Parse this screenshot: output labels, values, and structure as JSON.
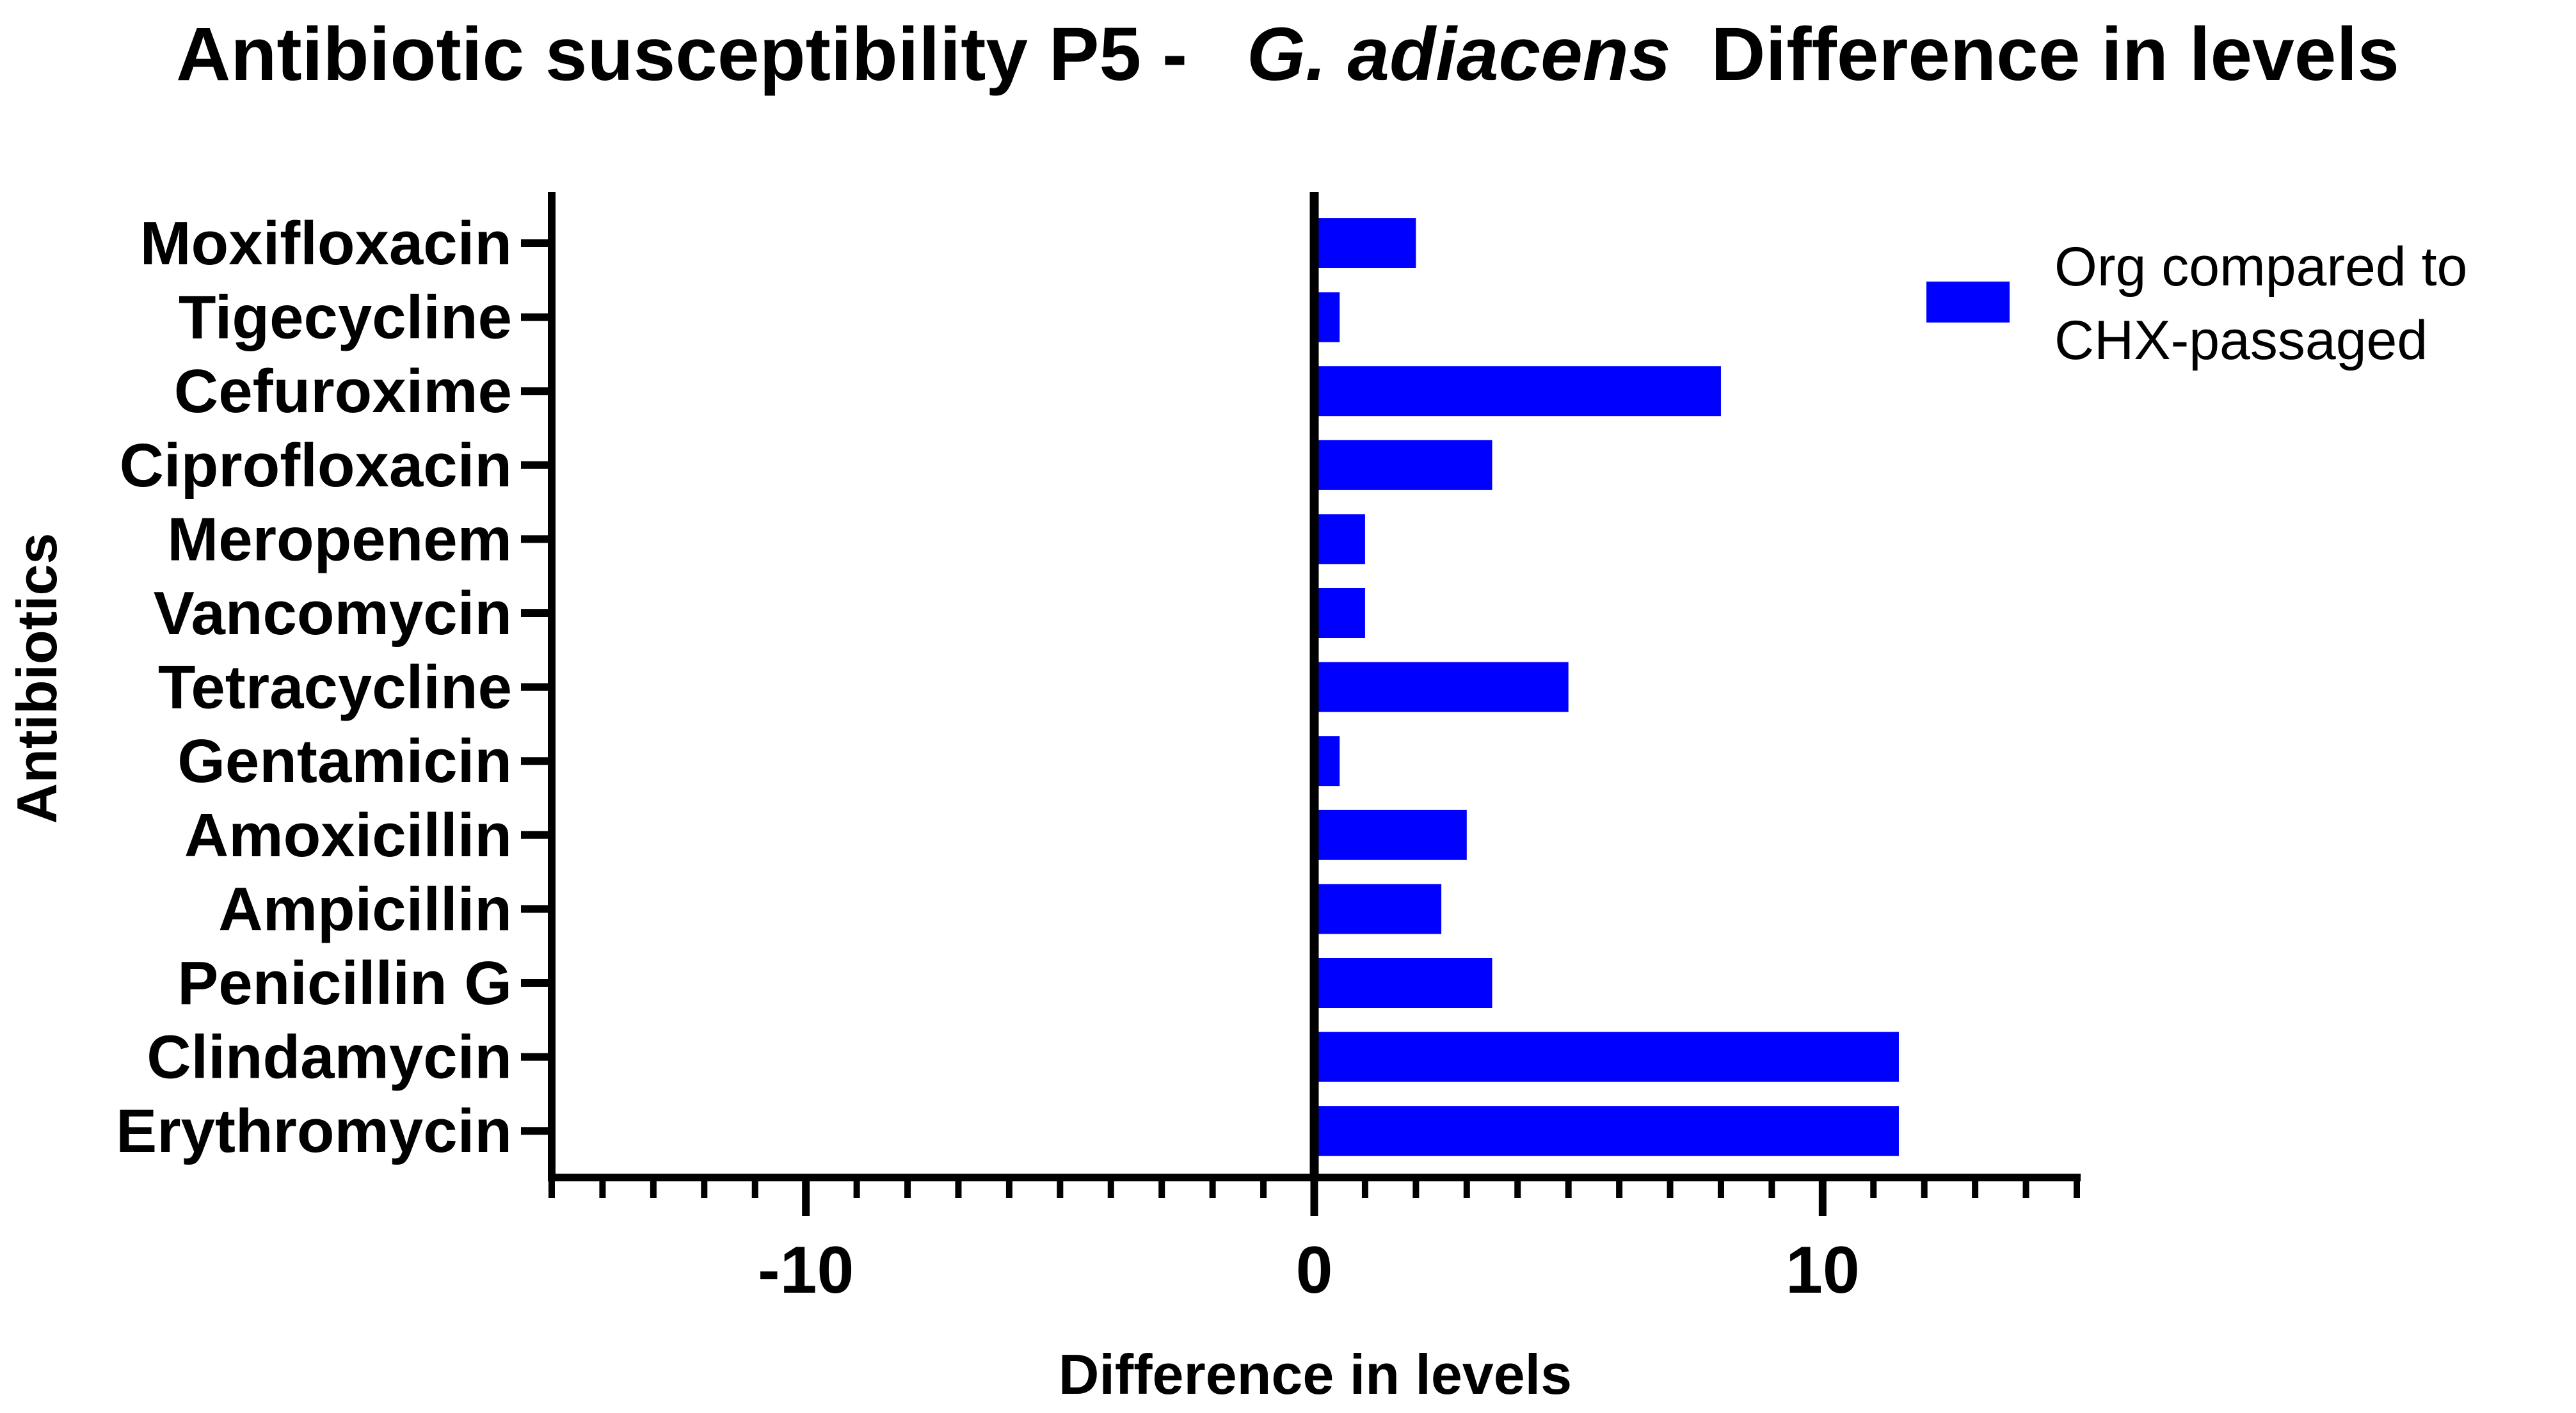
{
  "chart_data": {
    "type": "bar",
    "orientation": "horizontal",
    "title": "Antibiotic susceptibility P5 -",
    "title_italic": "G. adiacens",
    "title_suffix": "Difference in levels",
    "xlabel": "Difference in levels",
    "ylabel": "Antibiotics",
    "xlim": [
      -15,
      15
    ],
    "xticks": [
      -10,
      0,
      10
    ],
    "minor_tick_step": 1,
    "categories": [
      "Moxifloxacin",
      "Tigecycline",
      "Cefuroxime",
      "Ciprofloxacin",
      "Meropenem",
      "Vancomycin",
      "Tetracycline",
      "Gentamicin",
      "Amoxicillin",
      "Ampicillin",
      "Penicillin G",
      "Clindamycin",
      "Erythromycin"
    ],
    "series": [
      {
        "name": "Org compared to CHX-passaged",
        "legend_lines": [
          "Org compared to",
          "CHX-passaged"
        ],
        "color": "#0000FF",
        "values": [
          2,
          0.5,
          8,
          3.5,
          1,
          1,
          5,
          0.5,
          3,
          2.5,
          3.5,
          11.5,
          11.5
        ]
      }
    ],
    "legend_position": "top-right",
    "grid": false
  }
}
